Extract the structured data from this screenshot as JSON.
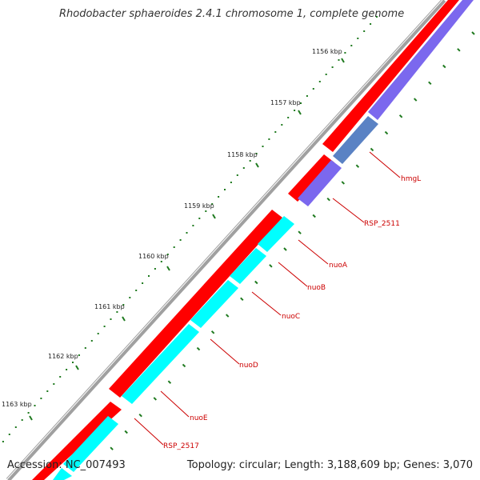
{
  "title": "Rhodobacter sphaeroides 2.4.1 chromosome 1, complete genome",
  "accession": "Accession: NC_007493",
  "summary": "Topology: circular; Length: 3,188,609 bp; Genes: 3,070",
  "ruler": {
    "ticks": [
      {
        "label": "1156 kbp"
      },
      {
        "label": "1157 kbp"
      },
      {
        "label": "1158 kbp"
      },
      {
        "label": "1159 kbp"
      },
      {
        "label": "1160 kbp"
      },
      {
        "label": "1161 kbp"
      },
      {
        "label": "1162 kbp"
      },
      {
        "label": "1163 kbp"
      }
    ]
  },
  "genes": [
    {
      "label": "hmgL",
      "strand": "reverse"
    },
    {
      "label": "RSP_2511",
      "strand": "reverse"
    },
    {
      "label": "nuoA",
      "strand": "reverse"
    },
    {
      "label": "nuoB",
      "strand": "reverse"
    },
    {
      "label": "nuoC",
      "strand": "reverse"
    },
    {
      "label": "nuoD",
      "strand": "reverse"
    },
    {
      "label": "nuoE",
      "strand": "reverse"
    },
    {
      "label": "RSP_2517",
      "strand": "reverse"
    }
  ],
  "colors": {
    "forward_cds": "#ff0000",
    "reverse_cds_nuo": "#00ffff",
    "reverse_cds_other": "#7b68ee",
    "label": "#cc0000",
    "tick": "#1f7a1f",
    "backbone": "#888888"
  }
}
